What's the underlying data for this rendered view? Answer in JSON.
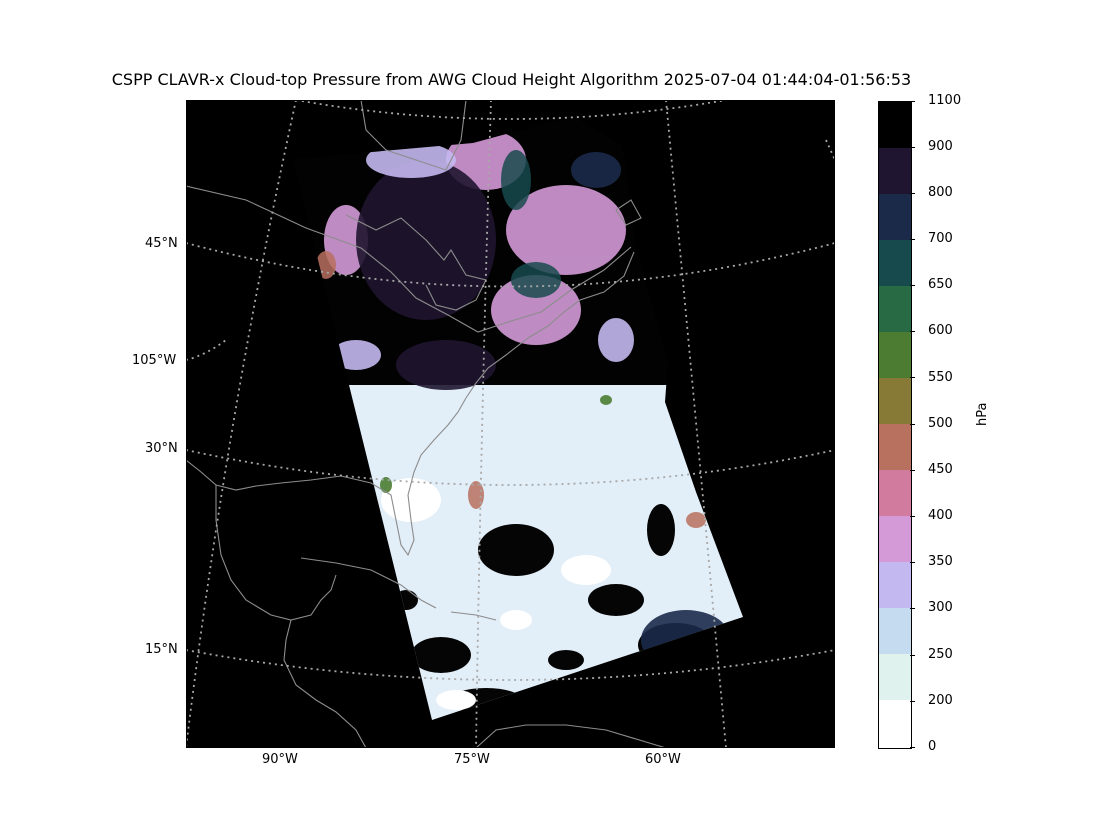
{
  "title": "CSPP CLAVR-x Cloud-top Pressure from AWG Cloud Height Algorithm 2025-07-04 01:44:04-01:56:53",
  "map": {
    "projection": "conic",
    "background_color": "#000000",
    "coastline_color": "#8c8c8c",
    "gridline_color": "#a8a8a8",
    "gridline_style": "dotted",
    "lat_labels": [
      "45°N",
      "30°N",
      "15°N"
    ],
    "lon_labels_left": [
      "105°W"
    ],
    "lon_labels_bottom": [
      "90°W",
      "75°W",
      "60°W"
    ]
  },
  "colorbar": {
    "unit": "hPa",
    "tick_labels": [
      "1100",
      "900",
      "800",
      "700",
      "650",
      "600",
      "550",
      "500",
      "450",
      "400",
      "350",
      "300",
      "250",
      "200",
      "0"
    ],
    "bins": [
      {
        "range": [
          0,
          200
        ],
        "color": "#ffffff"
      },
      {
        "range": [
          200,
          250
        ],
        "color": "#dff2ee"
      },
      {
        "range": [
          250,
          300
        ],
        "color": "#c5dcf0"
      },
      {
        "range": [
          300,
          350
        ],
        "color": "#c4b8f0"
      },
      {
        "range": [
          350,
          400
        ],
        "color": "#d49ad8"
      },
      {
        "range": [
          400,
          450
        ],
        "color": "#d17b9f"
      },
      {
        "range": [
          450,
          500
        ],
        "color": "#b8705f"
      },
      {
        "range": [
          500,
          550
        ],
        "color": "#877a36"
      },
      {
        "range": [
          550,
          600
        ],
        "color": "#4b7c31"
      },
      {
        "range": [
          600,
          650
        ],
        "color": "#276a44"
      },
      {
        "range": [
          650,
          700
        ],
        "color": "#174a4d"
      },
      {
        "range": [
          700,
          800
        ],
        "color": "#1c2a4a"
      },
      {
        "range": [
          800,
          900
        ],
        "color": "#1f1530"
      },
      {
        "range": [
          900,
          1100
        ],
        "color": "#000000"
      }
    ]
  }
}
